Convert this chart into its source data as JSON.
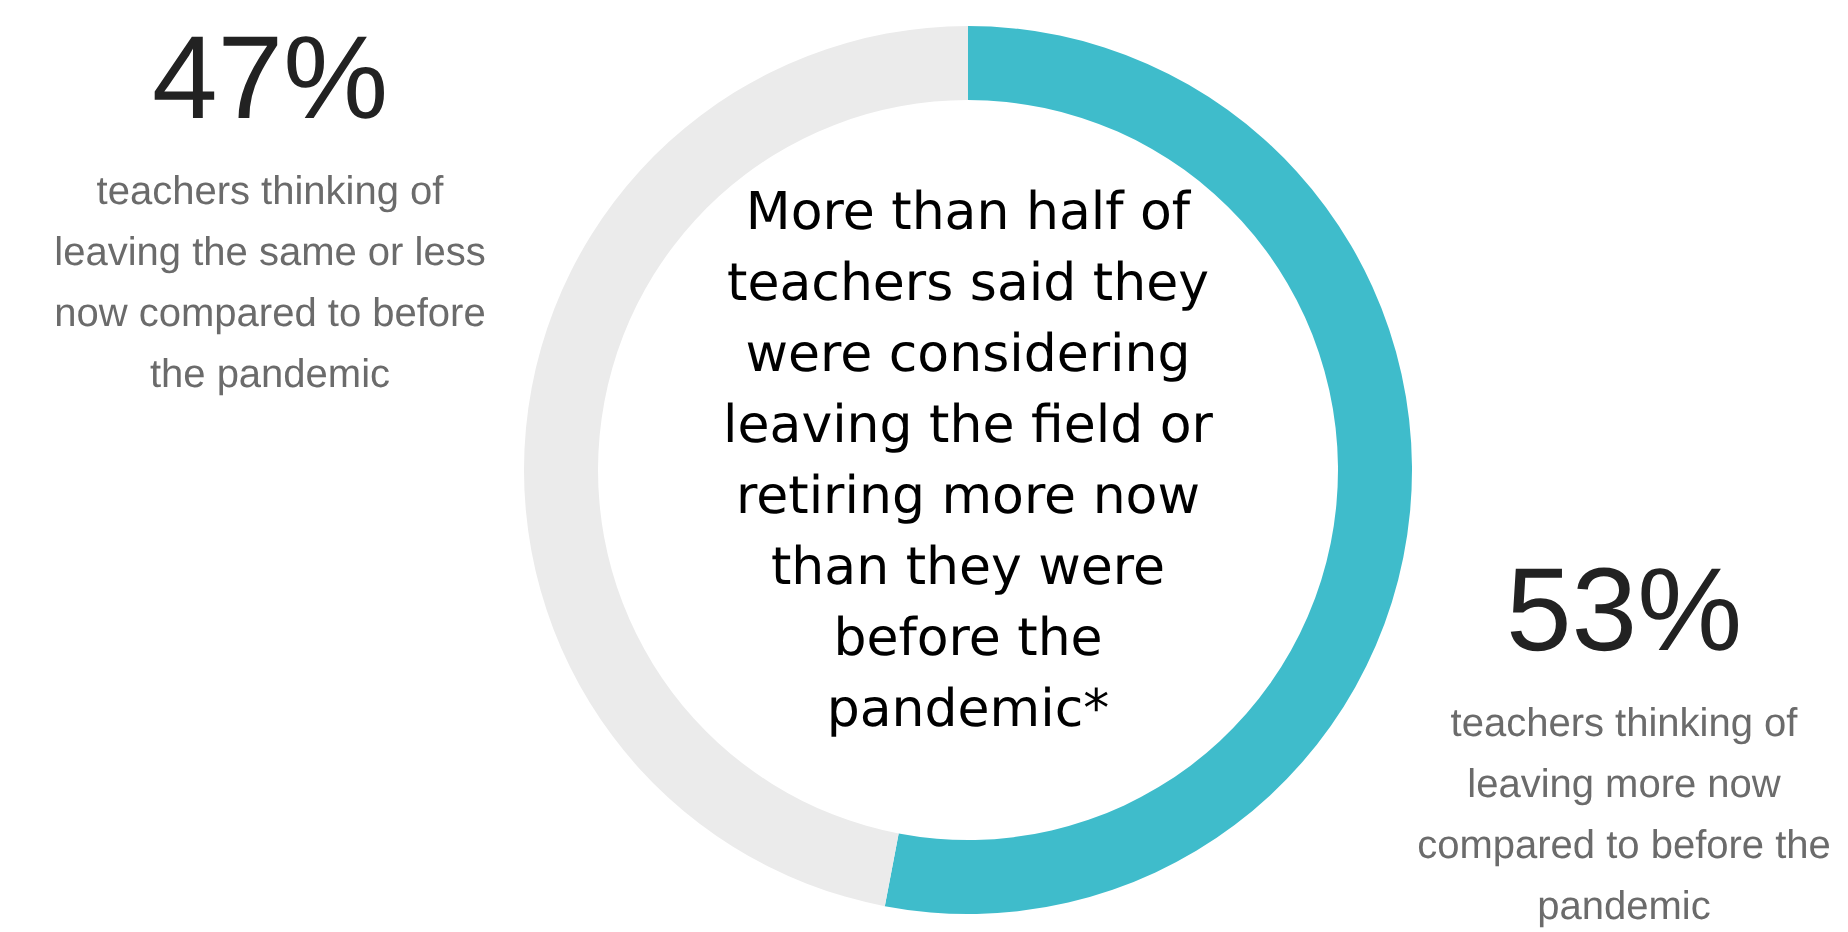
{
  "chart_data": {
    "type": "donut",
    "title": "More than half of teachers said they were considering leaving the field or retiring more now than they were before the pandemic*",
    "categories": [
      "teachers thinking of leaving more now compared to before the pandemic",
      "teachers thinking of leaving the same or less now compared to before the pandemic"
    ],
    "values": [
      53,
      47
    ],
    "colors": [
      "#3fbccb",
      "#ebebeb"
    ],
    "value_labels": [
      "53%",
      "47%"
    ]
  }
}
